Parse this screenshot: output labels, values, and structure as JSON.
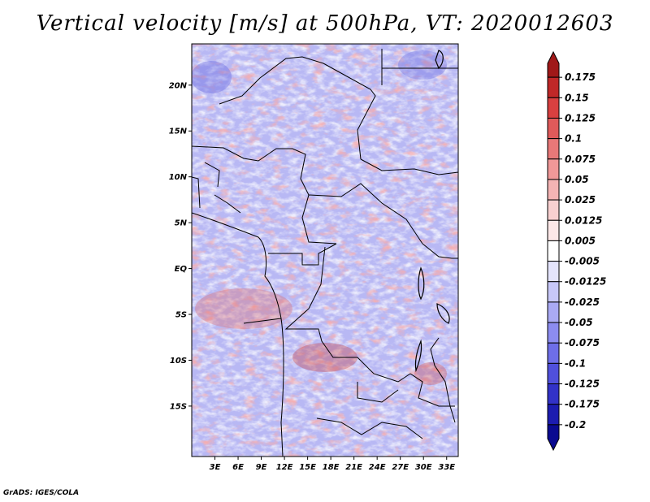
{
  "title": "Vertical velocity [m/s] at 500hPa, VT: 2020012603",
  "credit": "GrADS: IGES/COLA",
  "map": {
    "lat_labels": [
      "20N",
      "15N",
      "10N",
      "5N",
      "EQ",
      "5S",
      "10S",
      "15S"
    ],
    "lon_labels": [
      "3E",
      "6E",
      "9E",
      "12E",
      "15E",
      "18E",
      "21E",
      "24E",
      "27E",
      "30E",
      "33E"
    ],
    "lon_range": [
      0,
      34.5
    ],
    "lat_range": [
      -20.5,
      24.5
    ]
  },
  "colorbar": {
    "labels": [
      "0.175",
      "0.15",
      "0.125",
      "0.1",
      "0.075",
      "0.05",
      "0.025",
      "0.0125",
      "0.005",
      "-0.005",
      "-0.0125",
      "-0.025",
      "-0.05",
      "-0.075",
      "-0.1",
      "-0.125",
      "-0.175",
      "-0.2"
    ],
    "colors": [
      "#a01818",
      "#c02828",
      "#d84040",
      "#e05a5a",
      "#e87878",
      "#f09898",
      "#f4b4b4",
      "#f8d0d0",
      "#fce8e8",
      "#ffffff",
      "#e4e4fc",
      "#c8c8f8",
      "#aaaaf4",
      "#8c8cf0",
      "#6e6ee8",
      "#5050dc",
      "#3232c8",
      "#1c1cb0",
      "#0a0a90"
    ]
  }
}
